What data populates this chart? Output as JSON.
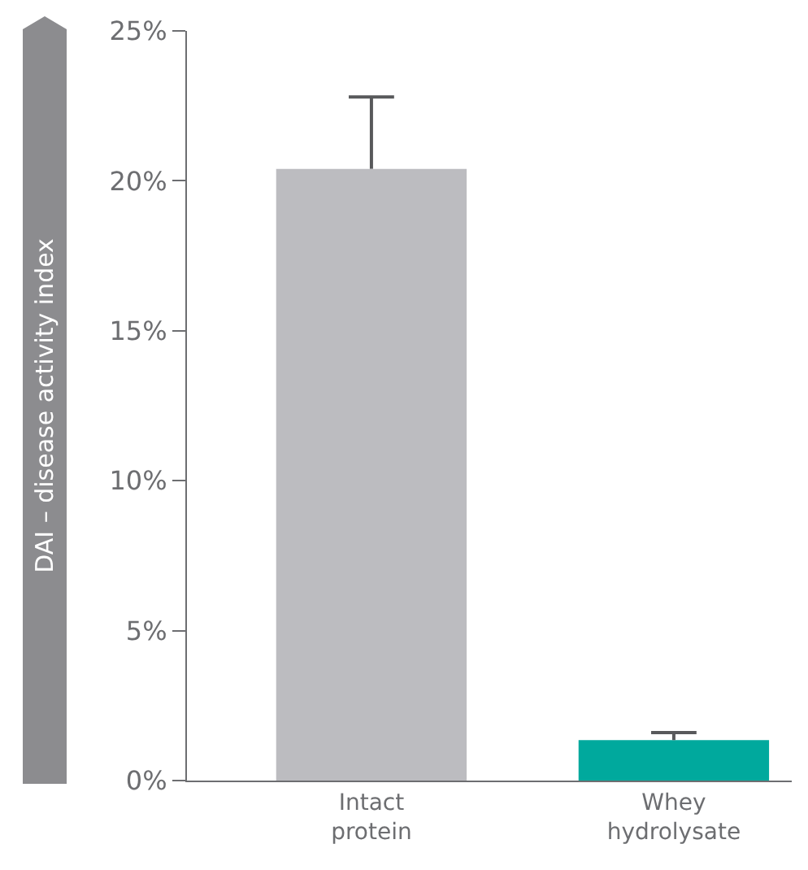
{
  "chart_data": {
    "type": "bar",
    "ylabel": "DAI – disease activity index",
    "categories": [
      "Intact protein",
      "Whey hydrolysate"
    ],
    "values": [
      20.4,
      1.35
    ],
    "colors": [
      "#bcbcc0",
      "#00a99d"
    ],
    "errors": [
      [
        20.4,
        22.8
      ],
      [
        1.35,
        1.6
      ]
    ],
    "ylim": [
      0,
      25
    ],
    "yticks": [
      {
        "value": 0,
        "label": "0%"
      },
      {
        "value": 5,
        "label": "5%"
      },
      {
        "value": 10,
        "label": "10%"
      },
      {
        "value": 15,
        "label": "15%"
      },
      {
        "value": 20,
        "label": "20%"
      },
      {
        "value": 25,
        "label": "25%"
      }
    ],
    "grid": false
  }
}
